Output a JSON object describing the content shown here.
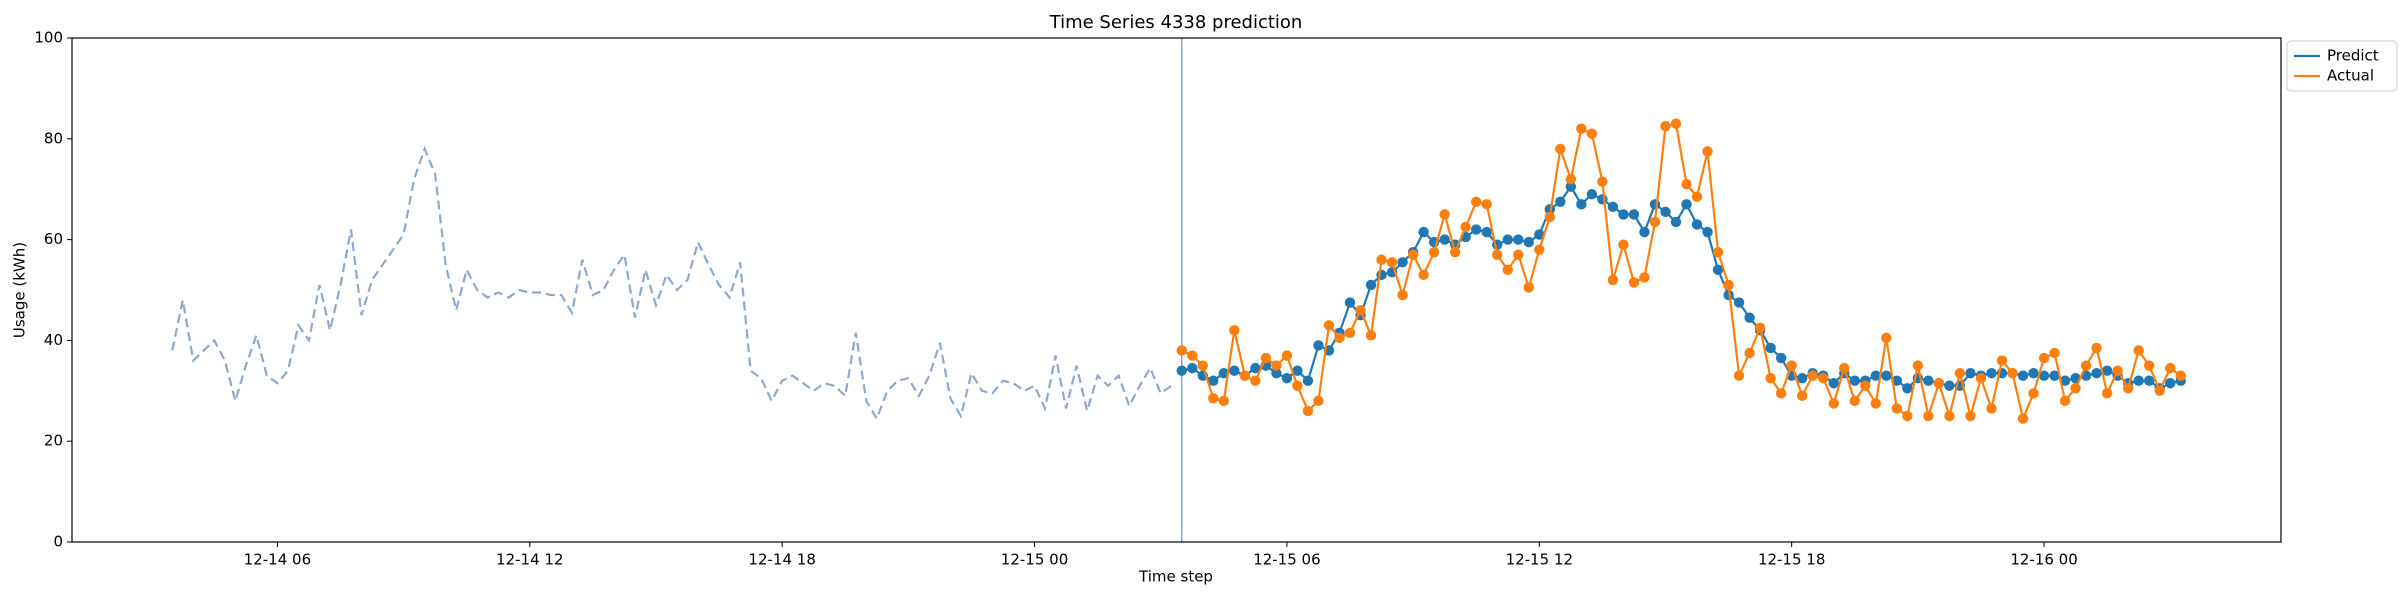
{
  "chart_data": {
    "type": "line",
    "title": "Time Series 4338 prediction",
    "xlabel": "Time step",
    "ylabel": "Usage (kWh)",
    "x": [
      "12-14 03:30",
      "12-14 03:45",
      "12-14 04:00",
      "12-14 04:15",
      "12-14 04:30",
      "12-14 04:45",
      "12-14 05:00",
      "12-14 05:15",
      "12-14 05:30",
      "12-14 05:45",
      "12-14 06:00",
      "12-14 06:15",
      "12-14 06:30",
      "12-14 06:45",
      "12-14 07:00",
      "12-14 07:15",
      "12-14 07:30",
      "12-14 07:45",
      "12-14 08:00",
      "12-14 08:15",
      "12-14 08:30",
      "12-14 08:45",
      "12-14 09:00",
      "12-14 09:15",
      "12-14 09:30",
      "12-14 09:45",
      "12-14 10:00",
      "12-14 10:15",
      "12-14 10:30",
      "12-14 10:45",
      "12-14 11:00",
      "12-14 11:15",
      "12-14 11:30",
      "12-14 11:45",
      "12-14 12:00",
      "12-14 12:15",
      "12-14 12:30",
      "12-14 12:45",
      "12-14 13:00",
      "12-14 13:15",
      "12-14 13:30",
      "12-14 13:45",
      "12-14 14:00",
      "12-14 14:15",
      "12-14 14:30",
      "12-14 14:45",
      "12-14 15:00",
      "12-14 15:15",
      "12-14 15:30",
      "12-14 15:45",
      "12-14 16:00",
      "12-14 16:15",
      "12-14 16:30",
      "12-14 16:45",
      "12-14 17:00",
      "12-14 17:15",
      "12-14 17:30",
      "12-14 17:45",
      "12-14 18:00",
      "12-14 18:15",
      "12-14 18:30",
      "12-14 18:45",
      "12-14 19:00",
      "12-14 19:15",
      "12-14 19:30",
      "12-14 19:45",
      "12-14 20:00",
      "12-14 20:15",
      "12-14 20:30",
      "12-14 20:45",
      "12-14 21:00",
      "12-14 21:15",
      "12-14 21:30",
      "12-14 21:45",
      "12-14 22:00",
      "12-14 22:15",
      "12-14 22:30",
      "12-14 22:45",
      "12-14 23:00",
      "12-14 23:15",
      "12-14 23:30",
      "12-14 23:45",
      "12-15 00:00",
      "12-15 00:15",
      "12-15 00:30",
      "12-15 00:45",
      "12-15 01:00",
      "12-15 01:15",
      "12-15 01:30",
      "12-15 01:45",
      "12-15 02:00",
      "12-15 02:15",
      "12-15 02:30",
      "12-15 02:45",
      "12-15 03:00",
      "12-15 03:15",
      "12-15 03:30",
      "12-15 03:45",
      "12-15 04:00",
      "12-15 04:15",
      "12-15 04:30",
      "12-15 04:45",
      "12-15 05:00",
      "12-15 05:15",
      "12-15 05:30",
      "12-15 05:45",
      "12-15 06:00",
      "12-15 06:15",
      "12-15 06:30",
      "12-15 06:45",
      "12-15 07:00",
      "12-15 07:15",
      "12-15 07:30",
      "12-15 07:45",
      "12-15 08:00",
      "12-15 08:15",
      "12-15 08:30",
      "12-15 08:45",
      "12-15 09:00",
      "12-15 09:15",
      "12-15 09:30",
      "12-15 09:45",
      "12-15 10:00",
      "12-15 10:15",
      "12-15 10:30",
      "12-15 10:45",
      "12-15 11:00",
      "12-15 11:15",
      "12-15 11:30",
      "12-15 11:45",
      "12-15 12:00",
      "12-15 12:15",
      "12-15 12:30",
      "12-15 12:45",
      "12-15 13:00",
      "12-15 13:15",
      "12-15 13:30",
      "12-15 13:45",
      "12-15 14:00",
      "12-15 14:15",
      "12-15 14:30",
      "12-15 14:45",
      "12-15 15:00",
      "12-15 15:15",
      "12-15 15:30",
      "12-15 15:45",
      "12-15 16:00",
      "12-15 16:15",
      "12-15 16:30",
      "12-15 16:45",
      "12-15 17:00",
      "12-15 17:15",
      "12-15 17:30",
      "12-15 17:45",
      "12-15 18:00",
      "12-15 18:15",
      "12-15 18:30",
      "12-15 18:45",
      "12-15 19:00",
      "12-15 19:15",
      "12-15 19:30",
      "12-15 19:45",
      "12-15 20:00",
      "12-15 20:15",
      "12-15 20:30",
      "12-15 20:45",
      "12-15 21:00",
      "12-15 21:15",
      "12-15 21:30",
      "12-15 21:45",
      "12-15 22:00",
      "12-15 22:15",
      "12-15 22:30",
      "12-15 22:45",
      "12-15 23:00",
      "12-15 23:15",
      "12-15 23:30",
      "12-15 23:45",
      "12-16 00:00",
      "12-16 00:15",
      "12-16 00:30",
      "12-16 00:45",
      "12-16 01:00",
      "12-16 01:15",
      "12-16 01:30",
      "12-16 01:45",
      "12-16 02:00",
      "12-16 02:15",
      "12-16 02:30",
      "12-16 02:45",
      "12-16 03:00",
      "12-16 03:15"
    ],
    "series": [
      {
        "color": "#8fa8cc",
        "linestyle": "dashed",
        "values": [
          38,
          48,
          36,
          38,
          40,
          36,
          28,
          35,
          41,
          33,
          31.5,
          34,
          43,
          40,
          51,
          42,
          51,
          62,
          45,
          52,
          55,
          58,
          61,
          72,
          78,
          73,
          55,
          46,
          54,
          50,
          48.5,
          49.5,
          48.5,
          50,
          49.5,
          49.5,
          49,
          49,
          45.5,
          56,
          49,
          50,
          54,
          57,
          44.5,
          54,
          47,
          53,
          50,
          52,
          59.5,
          55,
          51,
          48.5,
          55.5,
          34,
          32.5,
          28,
          32,
          33,
          31.5,
          30,
          31.5,
          31,
          29,
          41.5,
          28,
          24.5,
          30,
          32,
          32.5,
          29,
          33,
          39.5,
          28.5,
          25,
          33.5,
          30,
          29.5,
          32,
          31.5,
          30,
          31,
          26.5,
          37,
          26.5,
          35,
          26,
          33,
          31,
          33,
          27,
          31,
          34.5,
          29.5,
          31,
          null,
          null,
          null,
          null,
          null,
          null,
          null,
          null,
          null,
          null,
          null,
          null,
          null,
          null,
          null,
          null,
          null,
          null,
          null,
          null,
          null,
          null,
          null,
          null,
          null,
          null,
          null,
          null,
          null,
          null,
          null,
          null,
          null,
          null,
          null,
          null,
          null,
          null,
          null,
          null,
          null,
          null,
          null,
          null,
          null,
          null,
          null,
          null,
          null,
          null,
          null,
          null,
          null,
          null,
          null,
          null,
          null,
          null,
          null,
          null,
          null,
          null,
          null,
          null,
          null,
          null,
          null,
          null,
          null,
          null,
          null,
          null,
          null,
          null,
          null,
          null,
          null,
          null,
          null,
          null,
          null,
          null,
          null,
          null,
          null,
          null,
          null,
          null,
          null,
          null,
          null,
          null,
          null,
          null,
          null,
          null
        ]
      },
      {
        "name": "Predict",
        "color": "#1f77b4",
        "marker": "o",
        "values": [
          null,
          null,
          null,
          null,
          null,
          null,
          null,
          null,
          null,
          null,
          null,
          null,
          null,
          null,
          null,
          null,
          null,
          null,
          null,
          null,
          null,
          null,
          null,
          null,
          null,
          null,
          null,
          null,
          null,
          null,
          null,
          null,
          null,
          null,
          null,
          null,
          null,
          null,
          null,
          null,
          null,
          null,
          null,
          null,
          null,
          null,
          null,
          null,
          null,
          null,
          null,
          null,
          null,
          null,
          null,
          null,
          null,
          null,
          null,
          null,
          null,
          null,
          null,
          null,
          null,
          null,
          null,
          null,
          null,
          null,
          null,
          null,
          null,
          null,
          null,
          null,
          null,
          null,
          null,
          null,
          null,
          null,
          null,
          null,
          null,
          null,
          null,
          null,
          null,
          null,
          null,
          null,
          null,
          null,
          null,
          null,
          34,
          34.5,
          33,
          32,
          33.5,
          34,
          33,
          34.5,
          35,
          33.5,
          32.5,
          34,
          32,
          39,
          38,
          41.5,
          47.5,
          45,
          51,
          53,
          53.5,
          55.5,
          57.5,
          61.5,
          59.5,
          60,
          59,
          60.5,
          62,
          61.5,
          59,
          60,
          60,
          59.5,
          61,
          66,
          67.5,
          70.5,
          67,
          69,
          68,
          66.5,
          65,
          65,
          61.5,
          67,
          65.5,
          63.5,
          67,
          63,
          61.5,
          54,
          49,
          47.5,
          44.5,
          42,
          38.5,
          36.5,
          33,
          32.5,
          33.5,
          33,
          31.5,
          33.5,
          32,
          32,
          33,
          33,
          32,
          30.5,
          32.5,
          32,
          31.5,
          31,
          31,
          33.5,
          33,
          33.5,
          33.5,
          33.5,
          33,
          33.5,
          33,
          33,
          32,
          32.5,
          33,
          33.5,
          34,
          33,
          31.5,
          32,
          32,
          30.5,
          31.5,
          32
        ]
      },
      {
        "name": "Actual",
        "color": "#ff7f0e",
        "marker": "o",
        "values": [
          null,
          null,
          null,
          null,
          null,
          null,
          null,
          null,
          null,
          null,
          null,
          null,
          null,
          null,
          null,
          null,
          null,
          null,
          null,
          null,
          null,
          null,
          null,
          null,
          null,
          null,
          null,
          null,
          null,
          null,
          null,
          null,
          null,
          null,
          null,
          null,
          null,
          null,
          null,
          null,
          null,
          null,
          null,
          null,
          null,
          null,
          null,
          null,
          null,
          null,
          null,
          null,
          null,
          null,
          null,
          null,
          null,
          null,
          null,
          null,
          null,
          null,
          null,
          null,
          null,
          null,
          null,
          null,
          null,
          null,
          null,
          null,
          null,
          null,
          null,
          null,
          null,
          null,
          null,
          null,
          null,
          null,
          null,
          null,
          null,
          null,
          null,
          null,
          null,
          null,
          null,
          null,
          null,
          null,
          null,
          null,
          38,
          37,
          35,
          28.5,
          28,
          42,
          33,
          32,
          36.5,
          35,
          37,
          31,
          26,
          28,
          43,
          40.5,
          41.5,
          46,
          41,
          56,
          55.5,
          49,
          57,
          53,
          57.5,
          65,
          57.5,
          62.5,
          67.5,
          67,
          57,
          54,
          57,
          50.5,
          58,
          64.5,
          78,
          72,
          82,
          81,
          71.5,
          52,
          59,
          51.5,
          52.5,
          63.5,
          82.5,
          83,
          71,
          68.5,
          77.5,
          57.5,
          51,
          33,
          37.5,
          42.5,
          32.5,
          29.5,
          35,
          29,
          33,
          32.5,
          27.5,
          34.5,
          28,
          31,
          27.5,
          40.5,
          26.5,
          25,
          35,
          25,
          31.5,
          25,
          33.5,
          25,
          32.5,
          26.5,
          36,
          33.5,
          24.5,
          29.5,
          36.5,
          37.5,
          28,
          30.5,
          35,
          38.5,
          29.5,
          34,
          30.5,
          38,
          35,
          30,
          34.5,
          33
        ]
      }
    ],
    "xlim": [
      "12-14 01:07",
      "12-16 05:38"
    ],
    "xticks": [
      {
        "value": "12-14 06:00",
        "label": "12-14 06"
      },
      {
        "value": "12-14 12:00",
        "label": "12-14 12"
      },
      {
        "value": "12-14 18:00",
        "label": "12-14 18"
      },
      {
        "value": "12-15 00:00",
        "label": "12-15 00"
      },
      {
        "value": "12-15 06:00",
        "label": "12-15 06"
      },
      {
        "value": "12-15 12:00",
        "label": "12-15 12"
      },
      {
        "value": "12-15 18:00",
        "label": "12-15 18"
      },
      {
        "value": "12-16 00:00",
        "label": "12-16 00"
      }
    ],
    "ylim": [
      0,
      100
    ],
    "yticks": [
      0,
      20,
      40,
      60,
      80,
      100
    ],
    "grid": false,
    "legend": "outside"
  }
}
